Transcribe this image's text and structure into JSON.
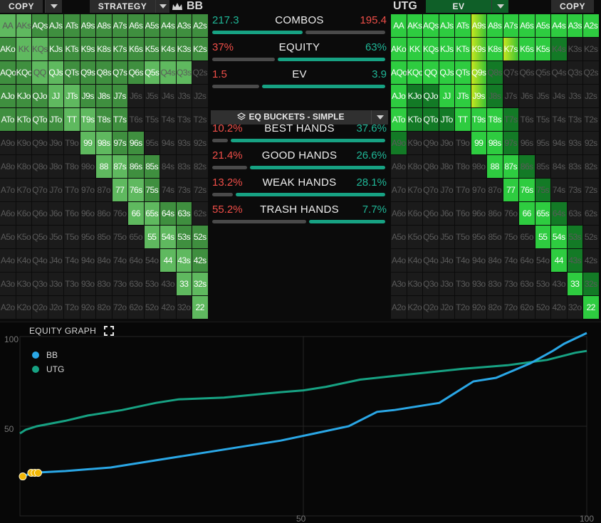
{
  "left_toolbar": {
    "copy_label": "COPY",
    "strategy_label": "STRATEGY",
    "player_label": "BB"
  },
  "right_toolbar": {
    "player_label": "UTG",
    "ev_label": "EV",
    "copy_label": "COPY"
  },
  "colors": {
    "range_green": "#5fb95f",
    "range_green_dark": "#3f8f3f",
    "muted_cell": "#1b1b1b",
    "ev_bright": "#2ecc40",
    "ev_yellow": "#c8e81f",
    "bb_line": "#2aa7e6",
    "utg_line": "#17a283",
    "marker": "#f2b705"
  },
  "ranks": [
    "A",
    "K",
    "Q",
    "J",
    "T",
    "9",
    "8",
    "7",
    "6",
    "5",
    "4",
    "3",
    "2"
  ],
  "bb_grid": {
    "light": [
      "AA",
      "AKs",
      "KK",
      "KQs",
      "QQ",
      "QJs",
      "JJ",
      "JTs",
      "TT",
      "T9s",
      "99",
      "98s",
      "88",
      "87s",
      "77",
      "76s",
      "66",
      "65s",
      "55",
      "54s",
      "44",
      "43s",
      "33",
      "32s",
      "22",
      "Q3s",
      "Q4s",
      "Q5s"
    ],
    "dark": [
      "AQs",
      "AJs",
      "ATs",
      "A9s",
      "A8s",
      "A7s",
      "A6s",
      "A5s",
      "A4s",
      "A3s",
      "A2s",
      "KJs",
      "KTs",
      "K9s",
      "K8s",
      "K7s",
      "K6s",
      "K5s",
      "K4s",
      "K3s",
      "K2s",
      "QTs",
      "Q9s",
      "Q8s",
      "Q7s",
      "Q6s",
      "J9s",
      "J8s",
      "J7s",
      "T8s",
      "T7s",
      "97s",
      "96s",
      "86s",
      "85s",
      "75s",
      "64s",
      "63s",
      "53s",
      "52s",
      "42s",
      "AKo",
      "AQo",
      "AJo",
      "ATo",
      "KQo",
      "KJo",
      "KTo",
      "QJo",
      "QTo",
      "JTo"
    ],
    "white": [
      "99",
      "98s",
      "88",
      "87s",
      "77",
      "76s",
      "66",
      "65s",
      "55",
      "54s",
      "44",
      "43s",
      "33",
      "32s",
      "22",
      "AKo",
      "AQs",
      "AJs",
      "ATs",
      "A9s",
      "A8s",
      "A7s",
      "A6s",
      "A5s",
      "A4s",
      "A3s",
      "A2s",
      "KJs",
      "KTs",
      "K9s",
      "K8s",
      "K7s",
      "K6s",
      "K5s",
      "K4s",
      "K3s",
      "K2s",
      "QJs",
      "QTs",
      "Q9s",
      "Q8s",
      "Q7s",
      "Q6s",
      "Q5s",
      "JTs",
      "J9s",
      "J8s",
      "J7s",
      "T9s",
      "T8s",
      "T7s",
      "97s",
      "96s",
      "86s",
      "85s",
      "75s",
      "64s",
      "63s",
      "53s",
      "52s",
      "42s",
      "AQo",
      "KQo",
      "AJo",
      "KJo",
      "QJo",
      "JJ",
      "ATo",
      "KTo",
      "QTo",
      "JTo",
      "TT"
    ]
  },
  "utg_grid": {
    "bright": [
      "AA",
      "AKs",
      "AQs",
      "AJs",
      "ATs",
      "A8s",
      "A7s",
      "A6s",
      "A5s",
      "A4s",
      "A3s",
      "A2s",
      "KK",
      "KQs",
      "KJs",
      "KTs",
      "K8s",
      "K6s",
      "QQ",
      "QJs",
      "QTs",
      "JJ",
      "JTs",
      "TT",
      "T9s",
      "T8s",
      "99",
      "98s",
      "88",
      "87s",
      "77",
      "76s",
      "66",
      "65s",
      "55",
      "54s",
      "44",
      "33",
      "22",
      "AKo",
      "AQo",
      "AJo",
      "ATo",
      "KQo",
      "K5s"
    ],
    "yellow": [
      "A9s",
      "K9s",
      "K7s",
      "Q9s",
      "J9s"
    ],
    "dark": [
      "KJo",
      "QJo",
      "KTo",
      "QTo",
      "JTo",
      "A9o",
      "Q8s",
      "K4s",
      "J8s",
      "T7s",
      "97s",
      "86s",
      "75s",
      "64s",
      "53s",
      "43s",
      "32s"
    ],
    "white": [
      "AA",
      "AKs",
      "AQs",
      "AJs",
      "ATs",
      "A9s",
      "A8s",
      "A7s",
      "A6s",
      "A5s",
      "A4s",
      "A3s",
      "A2s",
      "KK",
      "KQs",
      "KJs",
      "KTs",
      "K9s",
      "K8s",
      "K7s",
      "K6s",
      "K5s",
      "QQ",
      "QJs",
      "QTs",
      "Q9s",
      "JJ",
      "JTs",
      "J9s",
      "TT",
      "T9s",
      "T8s",
      "99",
      "98s",
      "88",
      "87s",
      "77",
      "76s",
      "66",
      "65s",
      "55",
      "54s",
      "44",
      "33",
      "22",
      "AKo",
      "AQo",
      "AJo",
      "ATo",
      "KQo",
      "KJo",
      "QJo",
      "KTo",
      "QTo",
      "JTo"
    ]
  },
  "stats": [
    {
      "name": "COMBOS",
      "left": "217.3",
      "right": "195.4",
      "left_frac": 0.53
    },
    {
      "name": "EQUITY",
      "left": "37%",
      "right": "63%",
      "left_frac": 0.37
    },
    {
      "name": "EV",
      "left": "1.5",
      "right": "3.9",
      "left_frac": 0.28
    }
  ],
  "buckets_button": {
    "label": "EQ BUCKETS - SIMPLE"
  },
  "buckets": [
    {
      "name": "BEST HANDS",
      "left": "10.2%",
      "right": "37.6%",
      "left_frac": 0.102,
      "right_frac": 0.376
    },
    {
      "name": "GOOD HANDS",
      "left": "21.4%",
      "right": "26.6%",
      "left_frac": 0.214,
      "right_frac": 0.266
    },
    {
      "name": "WEAK HANDS",
      "left": "13.2%",
      "right": "28.1%",
      "left_frac": 0.132,
      "right_frac": 0.281
    },
    {
      "name": "TRASH HANDS",
      "left": "55.2%",
      "right": "7.7%",
      "left_frac": 0.552,
      "right_frac": 0.077
    }
  ],
  "equity_graph": {
    "title": "EQUITY GRAPH",
    "legend": [
      {
        "name": "BB",
        "color": "#2aa7e6"
      },
      {
        "name": "UTG",
        "color": "#17a283"
      }
    ],
    "x_ticks": [
      "50",
      "100"
    ],
    "y_ticks": [
      "100",
      "50"
    ]
  }
}
